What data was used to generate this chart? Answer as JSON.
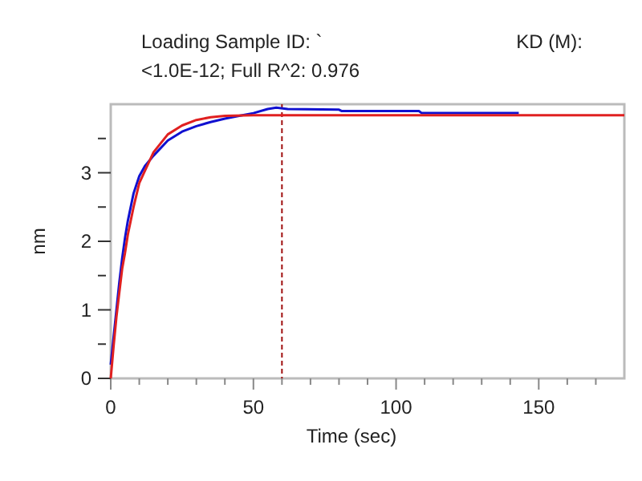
{
  "chart_data": {
    "type": "line",
    "title": "Loading Sample ID: `",
    "subtitle": "<1.0E-12; Full R^2: 0.976",
    "annotations": [
      "KD (M):"
    ],
    "xlabel": "Time (sec)",
    "ylabel": "nm",
    "xlim": [
      0,
      180
    ],
    "xticks": [
      0,
      {
        "value": 10,
        "label": null
      },
      {
        "value": 20,
        "label": null
      },
      {
        "value": 30,
        "label": null
      },
      {
        "value": 40,
        "label": null
      },
      50,
      {
        "value": 60,
        "label": null
      },
      {
        "value": 70,
        "label": null
      },
      {
        "value": 80,
        "label": null
      },
      {
        "value": 90,
        "label": null
      },
      100,
      {
        "value": 110,
        "label": null
      },
      {
        "value": 120,
        "label": null
      },
      {
        "value": 130,
        "label": null
      },
      {
        "value": 140,
        "label": null
      },
      150,
      {
        "value": 160,
        "label": null
      },
      {
        "value": 170,
        "label": null
      }
    ],
    "ylim": [
      0,
      4
    ],
    "yticks": [
      0,
      {
        "value": 0.5,
        "label": null
      },
      1,
      {
        "value": 1.5,
        "label": null
      },
      2,
      {
        "value": 2.5,
        "label": null
      },
      3,
      {
        "value": 3.5,
        "label": null
      }
    ],
    "grid": false,
    "marker": "none",
    "line_style": "solid",
    "ref_lines": [
      {
        "axis": "x",
        "value": 60,
        "label": null,
        "color": "#a01010",
        "line_style": "dashed"
      }
    ],
    "series": [
      {
        "color": "#1010d0",
        "x": [
          0,
          1,
          2,
          3,
          4,
          5,
          6,
          8,
          10,
          12,
          15,
          20,
          25,
          30,
          35,
          40,
          45,
          50,
          55,
          58,
          62,
          80,
          81,
          108,
          109,
          143
        ],
        "values": [
          0.2,
          0.6,
          1.0,
          1.4,
          1.75,
          2.05,
          2.3,
          2.7,
          2.95,
          3.1,
          3.25,
          3.47,
          3.6,
          3.68,
          3.74,
          3.79,
          3.83,
          3.87,
          3.93,
          3.95,
          3.93,
          3.92,
          3.9,
          3.9,
          3.87,
          3.87
        ]
      },
      {
        "color": "#e02020",
        "x": [
          0,
          1,
          2,
          3,
          4,
          5,
          6,
          8,
          10,
          12,
          15,
          20,
          25,
          30,
          35,
          40,
          50,
          60,
          180
        ],
        "values": [
          0,
          0.47,
          0.9,
          1.25,
          1.6,
          1.83,
          2.1,
          2.5,
          2.85,
          3.03,
          3.3,
          3.56,
          3.69,
          3.77,
          3.81,
          3.83,
          3.84,
          3.84,
          3.84
        ]
      }
    ]
  }
}
